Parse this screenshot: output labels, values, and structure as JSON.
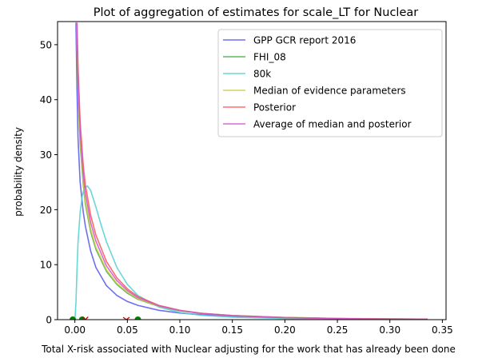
{
  "chart_data": {
    "type": "line",
    "title": "Plot of aggregation of estimates for scale_LT for Nuclear",
    "xlabel": "Total X-risk associated with Nuclear adjusting for the work that has already been done",
    "ylabel": "probability density",
    "xlim": [
      -0.0165,
      0.3535
    ],
    "ylim": [
      0,
      54.2
    ],
    "x_ticks": [
      0.0,
      0.05,
      0.1,
      0.15,
      0.2,
      0.25,
      0.3,
      0.35
    ],
    "x_tick_labels": [
      "0.00",
      "0.05",
      "0.10",
      "0.15",
      "0.20",
      "0.25",
      "0.30",
      "0.35"
    ],
    "y_ticks": [
      0,
      10,
      20,
      30,
      40,
      50
    ],
    "y_tick_labels": [
      "0",
      "10",
      "20",
      "30",
      "40",
      "50"
    ],
    "grid": false,
    "legend_position": "top-right",
    "series": [
      {
        "name": "GPP GCR report 2016",
        "color": "#5555ee",
        "x": [
          0.001,
          0.002,
          0.003,
          0.005,
          0.008,
          0.01,
          0.015,
          0.02,
          0.03,
          0.04,
          0.05,
          0.06,
          0.08,
          0.1,
          0.12,
          0.15,
          0.2,
          0.25,
          0.3,
          0.336
        ],
        "y": [
          54,
          42,
          33,
          25,
          19.5,
          17,
          12.5,
          9.5,
          6.2,
          4.4,
          3.3,
          2.6,
          1.7,
          1.2,
          0.9,
          0.6,
          0.35,
          0.2,
          0.12,
          0.08
        ]
      },
      {
        "name": "FHI_08",
        "color": "#44aa44",
        "x": [
          0.0015,
          0.003,
          0.005,
          0.008,
          0.01,
          0.015,
          0.02,
          0.03,
          0.04,
          0.05,
          0.06,
          0.08,
          0.1,
          0.12,
          0.15,
          0.2,
          0.25,
          0.3,
          0.336
        ],
        "y": [
          54,
          42,
          32,
          24.5,
          21,
          16,
          12.8,
          8.8,
          6.4,
          4.8,
          3.7,
          2.4,
          1.6,
          1.15,
          0.75,
          0.4,
          0.22,
          0.13,
          0.09
        ]
      },
      {
        "name": "80k",
        "color": "#4dd0d0",
        "x": [
          0.0,
          0.001,
          0.002,
          0.003,
          0.005,
          0.007,
          0.009,
          0.012,
          0.015,
          0.02,
          0.025,
          0.03,
          0.04,
          0.05,
          0.06,
          0.08,
          0.1,
          0.12,
          0.15,
          0.2,
          0.25,
          0.3,
          0.336
        ],
        "y": [
          0,
          3,
          9,
          14,
          19.5,
          22.5,
          24,
          24.3,
          23.5,
          20.5,
          17.2,
          14.2,
          9.5,
          6.4,
          4.4,
          2.3,
          1.3,
          0.8,
          0.45,
          0.2,
          0.09,
          0.04,
          0.02
        ]
      },
      {
        "name": "Median of evidence parameters",
        "color": "#cccc44",
        "x": [
          0.0015,
          0.003,
          0.005,
          0.008,
          0.01,
          0.015,
          0.02,
          0.03,
          0.04,
          0.05,
          0.06,
          0.08,
          0.1,
          0.12,
          0.15,
          0.2,
          0.25,
          0.3,
          0.336
        ],
        "y": [
          54,
          42.5,
          32.5,
          25,
          21.5,
          16.5,
          13.2,
          9.1,
          6.6,
          5.0,
          3.8,
          2.45,
          1.65,
          1.15,
          0.75,
          0.4,
          0.22,
          0.13,
          0.09
        ]
      },
      {
        "name": "Posterior",
        "color": "#ff5555",
        "x": [
          0.002,
          0.003,
          0.005,
          0.008,
          0.01,
          0.015,
          0.02,
          0.03,
          0.04,
          0.05,
          0.06,
          0.08,
          0.1,
          0.12,
          0.15,
          0.2,
          0.25,
          0.3,
          0.336
        ],
        "y": [
          54,
          46,
          36,
          28,
          24.5,
          19,
          15.4,
          10.6,
          7.6,
          5.6,
          4.2,
          2.6,
          1.7,
          1.15,
          0.72,
          0.36,
          0.19,
          0.1,
          0.07
        ]
      },
      {
        "name": "Average of median and posterior",
        "color": "#cc55cc",
        "x": [
          0.0018,
          0.003,
          0.005,
          0.008,
          0.01,
          0.015,
          0.02,
          0.03,
          0.04,
          0.05,
          0.06,
          0.08,
          0.1,
          0.12,
          0.15,
          0.2,
          0.25,
          0.3,
          0.336
        ],
        "y": [
          54,
          44,
          34.2,
          26.5,
          23,
          17.7,
          14.3,
          9.8,
          7.1,
          5.3,
          4.0,
          2.52,
          1.67,
          1.15,
          0.73,
          0.38,
          0.2,
          0.11,
          0.08
        ]
      }
    ],
    "markers": [
      {
        "shape": "circle",
        "color": "#008000",
        "x": -0.002,
        "y": 0
      },
      {
        "shape": "circle",
        "color": "#008000",
        "x": 0.007,
        "y": 0
      },
      {
        "shape": "circle",
        "color": "#008000",
        "x": 0.06,
        "y": 0
      },
      {
        "shape": "x",
        "color": "#cc0000",
        "x": 0.01,
        "y": 0
      },
      {
        "shape": "tri_down",
        "color": "#cc0000",
        "x": 0.049,
        "y": 0
      }
    ]
  }
}
